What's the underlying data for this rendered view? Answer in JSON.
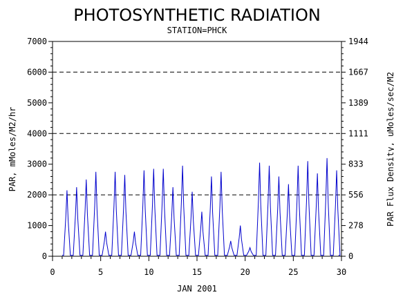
{
  "chart_data": {
    "type": "line",
    "title": "PHOTOSYNTHETIC RADIATION",
    "subtitle": "STATION=PHCK",
    "xlabel": "JAN 2001",
    "ylabel_left": "PAR, mMoles/M2/hr",
    "ylabel_right": "PAR Flux Density, uMoles/sec/M2",
    "xlim": [
      0,
      30
    ],
    "ylim": [
      0,
      7000
    ],
    "x_ticks": [
      0,
      5,
      10,
      15,
      20,
      25,
      30
    ],
    "y_ticks": [
      0,
      1000,
      2000,
      3000,
      4000,
      5000,
      6000,
      7000
    ],
    "y2_ticks": [
      0,
      278,
      556,
      833,
      1111,
      1389,
      1667,
      1944
    ],
    "dashed_gridlines_y": [
      2000,
      4000,
      6000
    ],
    "grid": "dashed horizontal at 2000, 4000, 6000",
    "line_color": "#0000cc",
    "series": [
      {
        "daily_peaks": [
          {
            "day": 1.5,
            "peak": 2150
          },
          {
            "day": 2.5,
            "peak": 2250
          },
          {
            "day": 3.5,
            "peak": 2500
          },
          {
            "day": 4.5,
            "peak": 2750
          },
          {
            "day": 5.5,
            "peak": 800
          },
          {
            "day": 6.5,
            "peak": 2750
          },
          {
            "day": 7.5,
            "peak": 2650
          },
          {
            "day": 8.5,
            "peak": 800
          },
          {
            "day": 9.5,
            "peak": 2800
          },
          {
            "day": 10.5,
            "peak": 2850
          },
          {
            "day": 11.5,
            "peak": 2850
          },
          {
            "day": 12.5,
            "peak": 2250
          },
          {
            "day": 13.5,
            "peak": 2950
          },
          {
            "day": 14.5,
            "peak": 2100
          },
          {
            "day": 15.5,
            "peak": 1450
          },
          {
            "day": 16.5,
            "peak": 2600
          },
          {
            "day": 17.5,
            "peak": 2750
          },
          {
            "day": 18.5,
            "peak": 500
          },
          {
            "day": 19.5,
            "peak": 1000
          },
          {
            "day": 20.5,
            "peak": 280
          },
          {
            "day": 21.5,
            "peak": 3050
          },
          {
            "day": 22.5,
            "peak": 2950
          },
          {
            "day": 23.5,
            "peak": 2600
          },
          {
            "day": 24.5,
            "peak": 2350
          },
          {
            "day": 25.5,
            "peak": 2950
          },
          {
            "day": 26.5,
            "peak": 3100
          },
          {
            "day": 27.5,
            "peak": 2700
          },
          {
            "day": 28.5,
            "peak": 3200
          },
          {
            "day": 29.5,
            "peak": 2800
          }
        ]
      }
    ]
  }
}
